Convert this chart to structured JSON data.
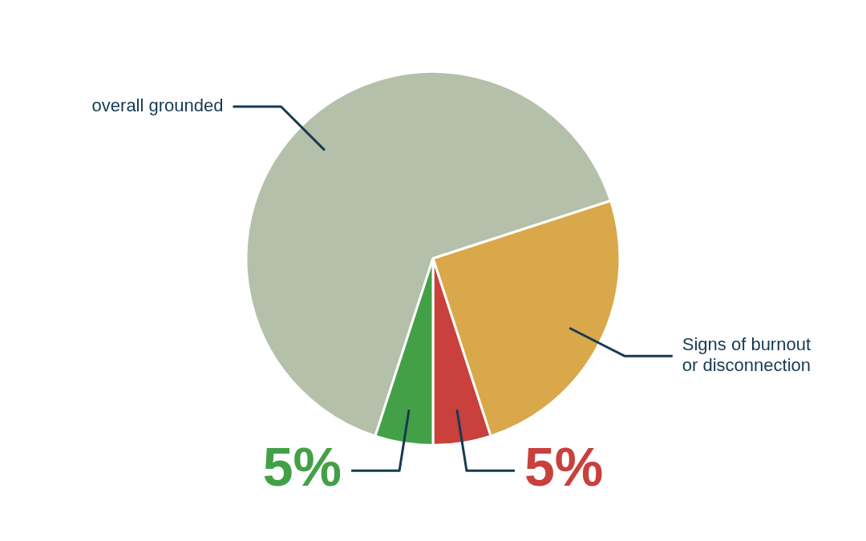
{
  "chart_data": {
    "type": "pie",
    "categories": [
      "overall grounded",
      "Signs of burnout or disconnection",
      null,
      null
    ],
    "values": [
      65,
      25,
      5,
      5
    ],
    "colors": [
      "#b5c0aa",
      "#d9a84a",
      "#c9403c",
      "#43a047"
    ],
    "value_labels": [
      null,
      null,
      "5%",
      "5%"
    ],
    "legend": false
  }
}
